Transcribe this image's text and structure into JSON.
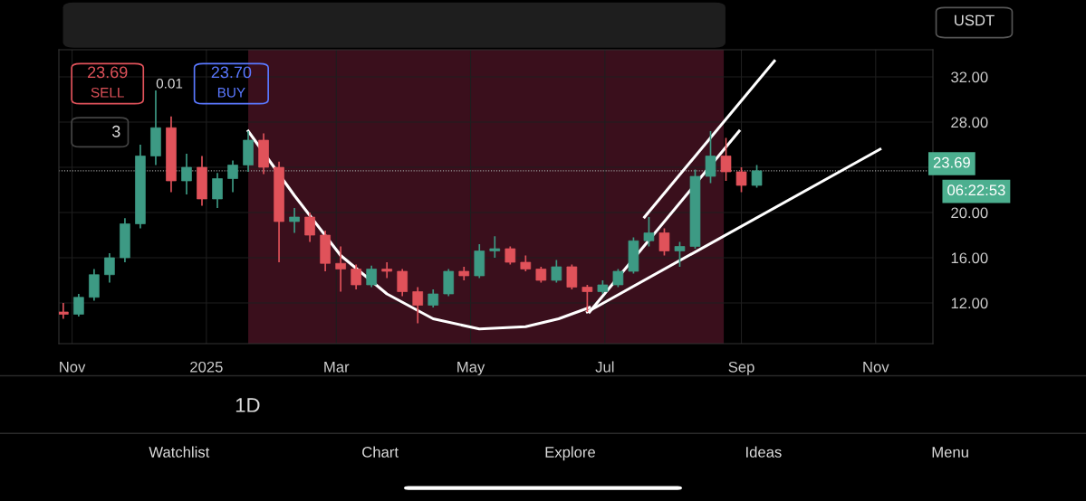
{
  "chart_data": {
    "type": "candlestick",
    "x": [
      "2024-10-28",
      "2024-11-04",
      "2024-11-11",
      "2024-11-18",
      "2024-11-25",
      "2024-12-02",
      "2024-12-09",
      "2024-12-16",
      "2024-12-23",
      "2024-12-30",
      "2025-01-06",
      "2025-01-13",
      "2025-01-20",
      "2025-01-27",
      "2025-02-03",
      "2025-02-10",
      "2025-02-17",
      "2025-02-24",
      "2025-03-03",
      "2025-03-10",
      "2025-03-17",
      "2025-03-24",
      "2025-03-31",
      "2025-04-07",
      "2025-04-14",
      "2025-04-21",
      "2025-04-28",
      "2025-05-05",
      "2025-05-12",
      "2025-05-19",
      "2025-05-26",
      "2025-06-02",
      "2025-06-09",
      "2025-06-16",
      "2025-06-23",
      "2025-06-30",
      "2025-07-07",
      "2025-07-14",
      "2025-07-21",
      "2025-07-28",
      "2025-08-04",
      "2025-08-11",
      "2025-08-18",
      "2025-08-25",
      "2025-09-01",
      "2025-09-08"
    ],
    "ohlc": [
      [
        11.2,
        12.0,
        10.6,
        11.0
      ],
      [
        11.0,
        12.8,
        10.8,
        12.5
      ],
      [
        12.5,
        15.0,
        12.2,
        14.5
      ],
      [
        14.5,
        16.4,
        13.8,
        16.0
      ],
      [
        16.0,
        19.5,
        15.6,
        19.0
      ],
      [
        19.0,
        26.0,
        18.6,
        25.0
      ],
      [
        25.0,
        30.8,
        24.2,
        27.5
      ],
      [
        27.5,
        28.5,
        21.8,
        22.8
      ],
      [
        22.8,
        25.2,
        21.6,
        24.0
      ],
      [
        24.0,
        25.0,
        20.6,
        21.2
      ],
      [
        21.2,
        23.5,
        20.4,
        23.0
      ],
      [
        23.0,
        24.6,
        21.8,
        24.2
      ],
      [
        24.2,
        27.2,
        23.6,
        26.4
      ],
      [
        26.4,
        27.0,
        23.4,
        24.0
      ],
      [
        24.0,
        24.5,
        15.6,
        19.2
      ],
      [
        19.2,
        20.4,
        18.2,
        19.6
      ],
      [
        19.6,
        20.0,
        17.4,
        18.0
      ],
      [
        18.0,
        18.4,
        14.8,
        15.5
      ],
      [
        15.5,
        17.0,
        13.0,
        15.0
      ],
      [
        15.0,
        15.4,
        13.2,
        13.6
      ],
      [
        13.6,
        15.3,
        13.4,
        15.0
      ],
      [
        15.0,
        15.6,
        14.2,
        14.8
      ],
      [
        14.8,
        15.0,
        12.6,
        13.0
      ],
      [
        13.0,
        13.4,
        10.2,
        11.8
      ],
      [
        11.8,
        13.2,
        11.6,
        12.8
      ],
      [
        12.8,
        15.0,
        12.6,
        14.8
      ],
      [
        14.8,
        15.2,
        14.0,
        14.4
      ],
      [
        14.4,
        17.2,
        14.2,
        16.6
      ],
      [
        16.6,
        17.9,
        16.0,
        16.8
      ],
      [
        16.8,
        17.0,
        15.4,
        15.6
      ],
      [
        15.6,
        16.2,
        14.8,
        15.0
      ],
      [
        15.0,
        15.2,
        13.8,
        14.0
      ],
      [
        14.0,
        15.8,
        13.8,
        15.2
      ],
      [
        15.2,
        15.4,
        13.2,
        13.4
      ],
      [
        13.4,
        13.6,
        11.2,
        13.0
      ],
      [
        13.0,
        14.0,
        12.8,
        13.6
      ],
      [
        13.6,
        15.0,
        13.4,
        14.8
      ],
      [
        14.8,
        17.8,
        14.6,
        17.5
      ],
      [
        17.5,
        19.6,
        17.0,
        18.2
      ],
      [
        18.2,
        18.6,
        16.2,
        16.6
      ],
      [
        16.6,
        17.4,
        15.2,
        17.0
      ],
      [
        17.0,
        23.8,
        16.8,
        23.2
      ],
      [
        23.2,
        27.2,
        22.6,
        25.0
      ],
      [
        25.0,
        26.6,
        22.8,
        23.6
      ],
      [
        23.6,
        24.0,
        21.8,
        22.4
      ],
      [
        22.4,
        24.2,
        22.2,
        23.69
      ]
    ],
    "series": [
      {
        "type": "line",
        "color": "#ffffff",
        "x": [
          "2025-01-20",
          "2025-02-10",
          "2025-03-03",
          "2025-03-24",
          "2025-04-14",
          "2025-05-05",
          "2025-05-26",
          "2025-06-10",
          "2025-06-24"
        ],
        "values": [
          27.2,
          21.5,
          16.2,
          12.8,
          10.6,
          9.7,
          9.9,
          10.6,
          11.6
        ]
      },
      {
        "type": "line",
        "color": "#ffffff",
        "x": [
          "2025-06-23",
          "2025-11-03"
        ],
        "values": [
          11.2,
          25.6
        ]
      },
      {
        "type": "line",
        "color": "#ffffff",
        "x": [
          "2025-07-19",
          "2025-09-16"
        ],
        "values": [
          19.6,
          33.4
        ]
      },
      {
        "type": "line",
        "color": "#ffffff",
        "x": [
          "2025-06-24",
          "2025-08-31"
        ],
        "values": [
          11.2,
          27.2
        ]
      }
    ],
    "bands": [
      {
        "axis": "x",
        "from": "2025-01-20",
        "to": "2025-08-24",
        "color": "#3a0f1c"
      }
    ],
    "ref_lines": [
      {
        "axis": "y",
        "value": 23.69,
        "label": "23.69",
        "line_style": "dotted",
        "color": "#9e9e9e"
      }
    ],
    "xlim": [
      "2024-10-26",
      "2025-11-27"
    ],
    "xticks": [
      {
        "value": "2024-11-01",
        "label": "Nov"
      },
      {
        "value": "2025-01-01",
        "label": "2025"
      },
      {
        "value": "2025-03-01",
        "label": "Mar"
      },
      {
        "value": "2025-05-01",
        "label": "May"
      },
      {
        "value": "2025-07-01",
        "label": "Jul"
      },
      {
        "value": "2025-09-01",
        "label": "Sep"
      },
      {
        "value": "2025-11-01",
        "label": "Nov"
      }
    ],
    "ylim": [
      8.4,
      34.4
    ],
    "yticks": [
      {
        "value": 12,
        "label": "12.00"
      },
      {
        "value": 16,
        "label": "16.00"
      },
      {
        "value": 20,
        "label": "20.00"
      },
      {
        "value": 24,
        "label": null
      },
      {
        "value": 28,
        "label": "28.00"
      },
      {
        "value": 32,
        "label": "32.00"
      }
    ],
    "grid": true,
    "annotations": [
      "23.69",
      "SELL",
      "23.70",
      "BUY",
      "0.01",
      "3",
      "USDT",
      "06:22:53",
      "1D",
      "Watchlist",
      "Chart",
      "Explore",
      "Ideas",
      "Menu"
    ]
  }
}
